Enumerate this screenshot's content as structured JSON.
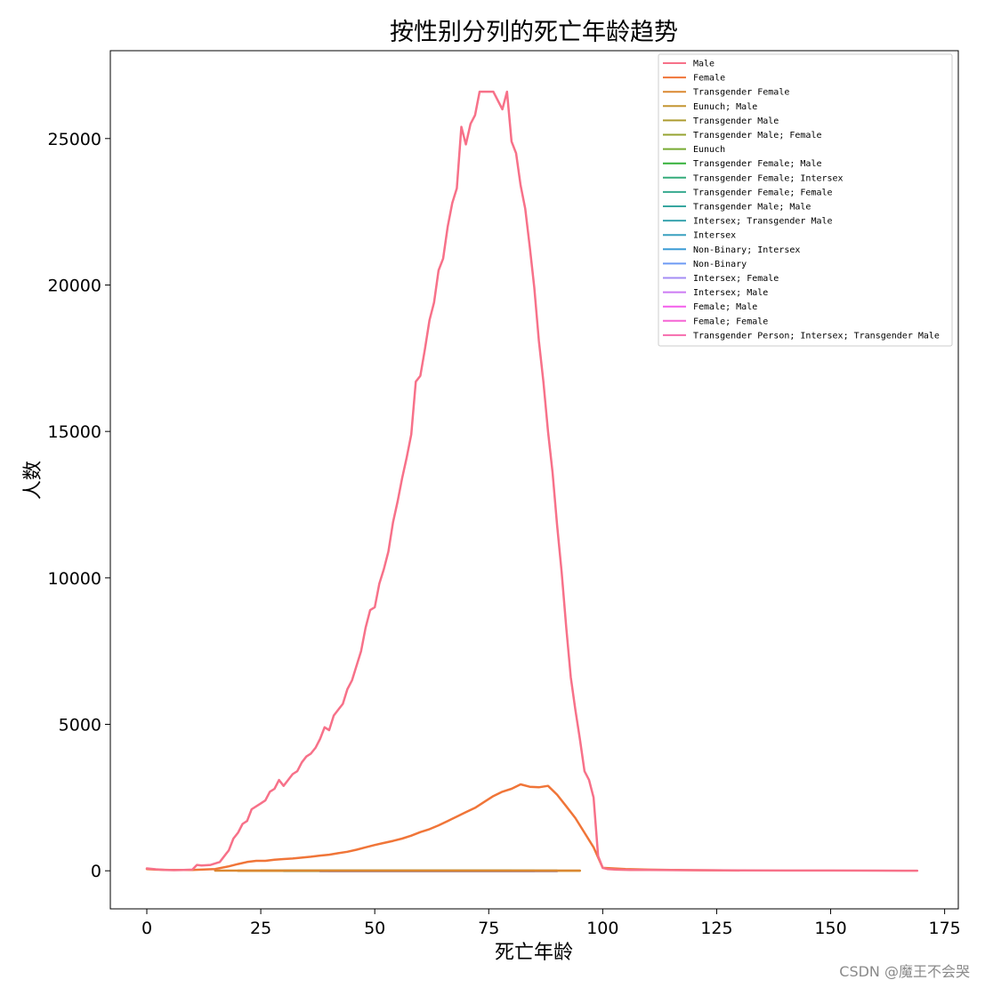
{
  "chart_data": {
    "type": "line",
    "title": "按性别分列的死亡年龄趋势",
    "xlabel": "死亡年龄",
    "ylabel": "人数",
    "xlim": [
      -8,
      178
    ],
    "ylim": [
      -1300,
      28000
    ],
    "xticks": [
      0,
      25,
      50,
      75,
      100,
      125,
      150,
      175
    ],
    "yticks": [
      0,
      5000,
      10000,
      15000,
      20000,
      25000
    ],
    "grid": false,
    "legend_position": "top-right",
    "series": [
      {
        "name": "Male",
        "color": "#f77189",
        "x": [
          0,
          2,
          4,
          6,
          8,
          10,
          11,
          12,
          14,
          16,
          18,
          19,
          20,
          21,
          22,
          23,
          24,
          25,
          26,
          27,
          28,
          29,
          30,
          31,
          32,
          33,
          34,
          35,
          36,
          37,
          38,
          39,
          40,
          41,
          42,
          43,
          44,
          45,
          46,
          47,
          48,
          49,
          50,
          51,
          52,
          53,
          54,
          55,
          56,
          57,
          58,
          59,
          60,
          61,
          62,
          63,
          64,
          65,
          66,
          67,
          68,
          69,
          70,
          71,
          72,
          73,
          74,
          75,
          76,
          77,
          78,
          79,
          80,
          81,
          82,
          83,
          84,
          85,
          86,
          87,
          88,
          89,
          90,
          91,
          92,
          93,
          94,
          95,
          96,
          97,
          98,
          99,
          100,
          101,
          103,
          106,
          110,
          114,
          120,
          130,
          140,
          150,
          160,
          169
        ],
        "values": [
          80,
          50,
          30,
          20,
          30,
          40,
          200,
          180,
          200,
          300,
          700,
          1100,
          1300,
          1600,
          1700,
          2100,
          2200,
          2300,
          2400,
          2700,
          2800,
          3100,
          2900,
          3100,
          3300,
          3400,
          3700,
          3900,
          4000,
          4200,
          4500,
          4900,
          4800,
          5300,
          5500,
          5700,
          6200,
          6500,
          7000,
          7500,
          8300,
          8900,
          9000,
          9800,
          10300,
          10900,
          11900,
          12600,
          13400,
          14100,
          14900,
          16700,
          16900,
          17800,
          18800,
          19400,
          20500,
          20900,
          22000,
          22800,
          23300,
          25400,
          24800,
          25500,
          25800,
          26600,
          26600,
          26600,
          26600,
          26300,
          26000,
          26600,
          24900,
          24500,
          23400,
          22600,
          21300,
          19900,
          18100,
          16700,
          15000,
          13600,
          11800,
          10200,
          8300,
          6600,
          5500,
          4500,
          3400,
          3100,
          2500,
          500,
          100,
          60,
          40,
          30,
          30,
          25,
          20,
          15,
          10,
          8,
          5,
          3
        ]
      },
      {
        "name": "Female",
        "color": "#f07538",
        "x": [
          0,
          2,
          5,
          10,
          15,
          18,
          20,
          22,
          24,
          26,
          28,
          30,
          32,
          34,
          36,
          38,
          40,
          42,
          44,
          46,
          48,
          50,
          52,
          54,
          56,
          58,
          60,
          62,
          64,
          66,
          68,
          70,
          72,
          74,
          76,
          78,
          80,
          82,
          84,
          86,
          88,
          90,
          92,
          94,
          96,
          98,
          100,
          105,
          110,
          115,
          120,
          130
        ],
        "values": [
          60,
          40,
          30,
          30,
          60,
          150,
          230,
          300,
          340,
          340,
          380,
          400,
          420,
          450,
          480,
          520,
          550,
          600,
          650,
          720,
          800,
          880,
          950,
          1020,
          1100,
          1200,
          1320,
          1420,
          1550,
          1700,
          1850,
          2000,
          2150,
          2350,
          2550,
          2700,
          2800,
          2950,
          2870,
          2850,
          2900,
          2600,
          2200,
          1800,
          1300,
          800,
          100,
          60,
          40,
          30,
          20,
          10
        ]
      },
      {
        "name": "Transgender Female",
        "color": "#db8831",
        "x": [
          15,
          95
        ],
        "values": [
          5,
          5
        ]
      },
      {
        "name": "Eunuch; Male",
        "color": "#c39532",
        "x": [
          20,
          95
        ],
        "values": [
          3,
          3
        ]
      },
      {
        "name": "Transgender Male",
        "color": "#ad9c31",
        "x": [
          20,
          90
        ],
        "values": [
          3,
          3
        ]
      },
      {
        "name": "Transgender Male; Female",
        "color": "#96a331",
        "x": [
          25,
          85
        ],
        "values": [
          2,
          2
        ]
      },
      {
        "name": "Eunuch",
        "color": "#77aa31",
        "x": [
          30,
          90
        ],
        "values": [
          2,
          2
        ]
      },
      {
        "name": "Transgender Female; Male",
        "color": "#33b039",
        "x": [
          25,
          80
        ],
        "values": [
          2,
          2
        ]
      },
      {
        "name": "Transgender Female; Intersex",
        "color": "#35ac7a",
        "x": [
          30,
          75
        ],
        "values": [
          1,
          1
        ]
      },
      {
        "name": "Transgender Female; Female",
        "color": "#36a98f",
        "x": [
          30,
          80
        ],
        "values": [
          1,
          1
        ]
      },
      {
        "name": "Transgender Male; Male",
        "color": "#37a69f",
        "x": [
          30,
          70
        ],
        "values": [
          1,
          1
        ]
      },
      {
        "name": "Intersex; Transgender Male",
        "color": "#38a3ae",
        "x": [
          30,
          65
        ],
        "values": [
          1,
          1
        ]
      },
      {
        "name": "Intersex",
        "color": "#39a0bf",
        "x": [
          30,
          90
        ],
        "values": [
          -8,
          -8
        ]
      },
      {
        "name": "Non-Binary; Intersex",
        "color": "#3b9cd5",
        "x": [
          35,
          70
        ],
        "values": [
          -5,
          -5
        ]
      },
      {
        "name": "Non-Binary",
        "color": "#6e9af4",
        "x": [
          35,
          80
        ],
        "values": [
          -5,
          -5
        ]
      },
      {
        "name": "Intersex; Female",
        "color": "#a48cf4",
        "x": [
          38,
          85
        ],
        "values": [
          -10,
          -10
        ]
      },
      {
        "name": "Intersex; Male",
        "color": "#cc7af4",
        "x": [
          38,
          90
        ],
        "values": [
          -12,
          -12
        ]
      },
      {
        "name": "Female; Male",
        "color": "#f45deb",
        "x": [
          40,
          85
        ],
        "values": [
          -12,
          -12
        ]
      },
      {
        "name": "Female; Female",
        "color": "#f564d4",
        "x": [
          40,
          80
        ],
        "values": [
          -10,
          -10
        ]
      },
      {
        "name": "Transgender Person; Intersex; Transgender Male",
        "color": "#f66bad",
        "x": [
          45,
          75
        ],
        "values": [
          -5,
          -5
        ]
      }
    ]
  },
  "watermark": "CSDN @魔王不会哭"
}
